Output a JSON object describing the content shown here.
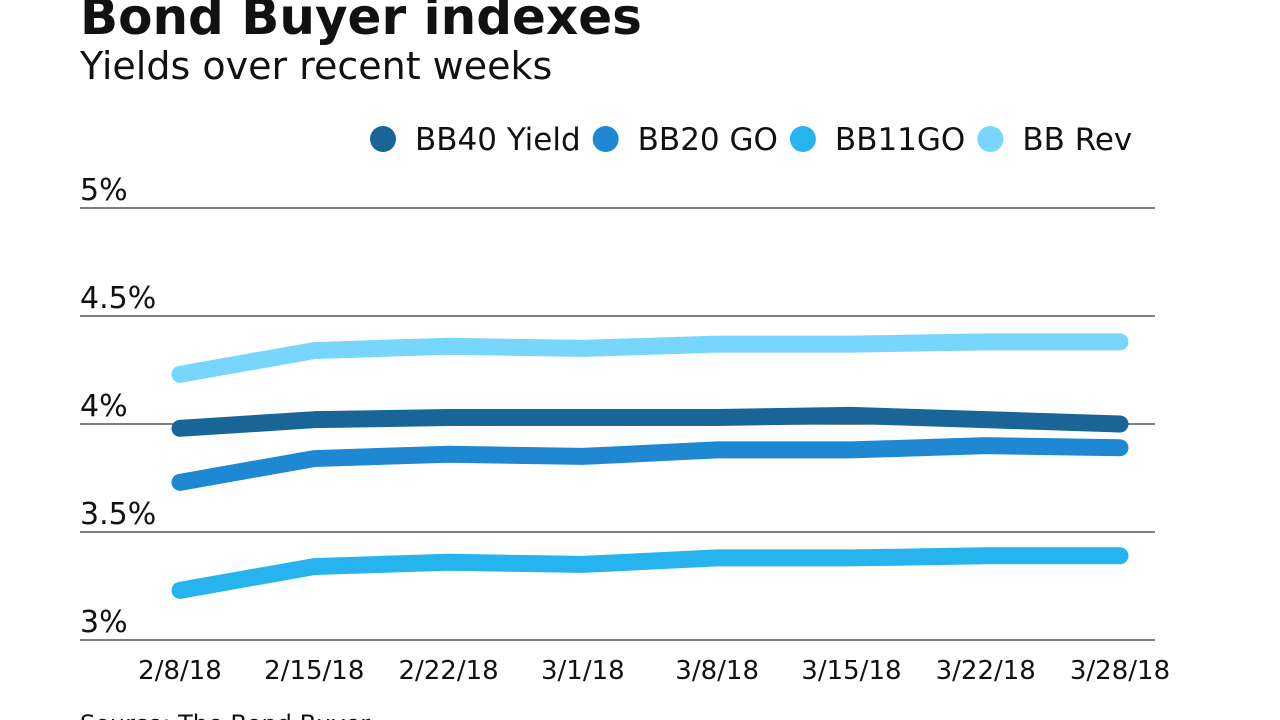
{
  "chart_data": {
    "type": "line",
    "title": "Bond Buyer indexes",
    "subtitle": "Yields over recent weeks",
    "source": "Source: The Bond Buyer",
    "categories": [
      "2/8/18",
      "2/15/18",
      "2/22/18",
      "3/1/18",
      "3/8/18",
      "3/15/18",
      "3/22/18",
      "3/28/18"
    ],
    "series": [
      {
        "name": "BB40 Yield",
        "color": "#1a6598",
        "values": [
          3.98,
          4.02,
          4.03,
          4.03,
          4.03,
          4.04,
          4.02,
          4.0
        ]
      },
      {
        "name": "BB20 GO",
        "color": "#1f88d2",
        "values": [
          3.73,
          3.84,
          3.86,
          3.85,
          3.88,
          3.88,
          3.9,
          3.89
        ]
      },
      {
        "name": "BB11GO",
        "color": "#27b4ee",
        "values": [
          3.23,
          3.34,
          3.36,
          3.35,
          3.38,
          3.38,
          3.39,
          3.39
        ]
      },
      {
        "name": "BB Rev",
        "color": "#78d5fb",
        "values": [
          4.23,
          4.34,
          4.36,
          4.35,
          4.37,
          4.37,
          4.38,
          4.38
        ]
      }
    ],
    "ylim": [
      3,
      5
    ],
    "yticks": [
      {
        "value": 3,
        "label": "3%"
      },
      {
        "value": 3.5,
        "label": "3.5%"
      },
      {
        "value": 4,
        "label": "4%"
      },
      {
        "value": 4.5,
        "label": "4.5%"
      },
      {
        "value": 5,
        "label": "5%"
      }
    ],
    "grid": true
  }
}
